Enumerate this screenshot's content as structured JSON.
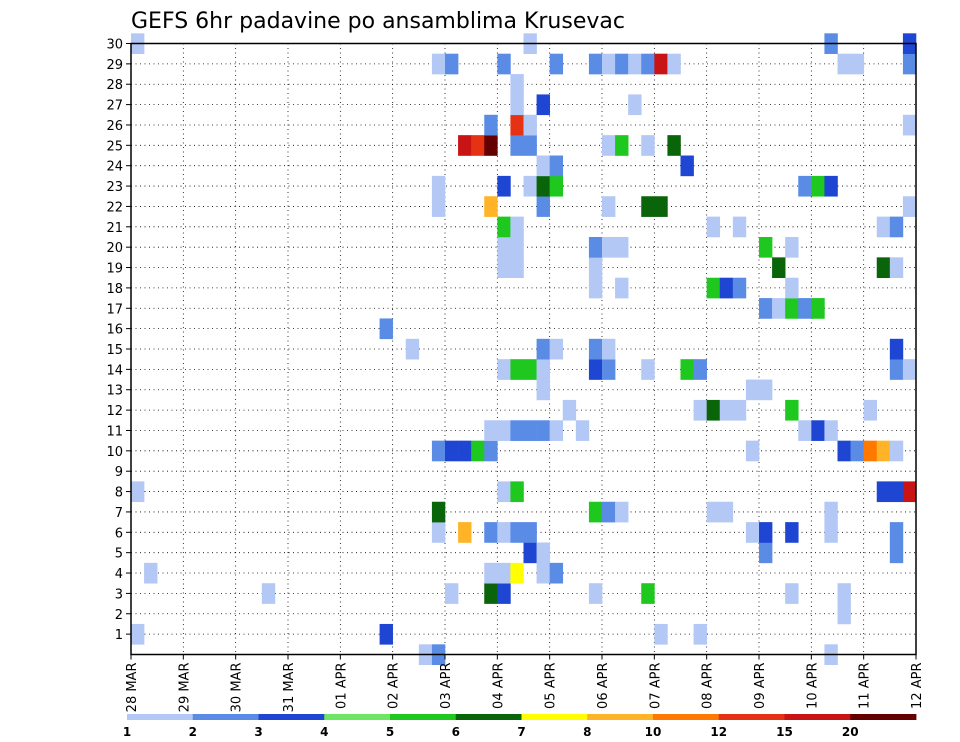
{
  "chart_data": {
    "type": "heatmap",
    "title": "GEFS 6hr padavine po ansamblima Krusevac",
    "xlabel": "",
    "ylabel": "",
    "x_tick_labels": [
      "28 MAR",
      "29 MAR",
      "30 MAR",
      "31 MAR",
      "01 APR",
      "02 APR",
      "03 APR",
      "04 APR",
      "05 APR",
      "06 APR",
      "07 APR",
      "08 APR",
      "09 APR",
      "10 APR",
      "11 APR",
      "12 APR"
    ],
    "x_steps_per_day": 4,
    "x_range_steps": [
      0,
      60
    ],
    "y_range": [
      0,
      30
    ],
    "y_ticks": [
      1,
      2,
      3,
      4,
      5,
      6,
      7,
      8,
      9,
      10,
      11,
      12,
      13,
      14,
      15,
      16,
      17,
      18,
      19,
      20,
      21,
      22,
      23,
      24,
      25,
      26,
      27,
      28,
      29,
      30
    ],
    "grid": "dotted",
    "colorbar": {
      "placement": "bottom",
      "levels": [
        "1",
        "2",
        "3",
        "4",
        "5",
        "6",
        "7",
        "8",
        "10",
        "12",
        "15",
        "20"
      ],
      "colors": [
        "#b4c8f5",
        "#5a8ce6",
        "#1e46d2",
        "#6ee664",
        "#1ec81e",
        "#0a640a",
        "#ffff00",
        "#ffb428",
        "#ff7800",
        "#e63214",
        "#c81414",
        "#640000"
      ]
    },
    "cells": [
      [
        0.5,
        1,
        1
      ],
      [
        0.5,
        8,
        1
      ],
      [
        0.5,
        30,
        1
      ],
      [
        1.5,
        4,
        1
      ],
      [
        10.5,
        3,
        1
      ],
      [
        19.5,
        1,
        3
      ],
      [
        19.5,
        16,
        2
      ],
      [
        21.5,
        15,
        1
      ],
      [
        22.5,
        0,
        1
      ],
      [
        23.5,
        0,
        2
      ],
      [
        23.5,
        6,
        1
      ],
      [
        23.5,
        7,
        6
      ],
      [
        23.5,
        10,
        2
      ],
      [
        23.5,
        22,
        1
      ],
      [
        23.5,
        23,
        1
      ],
      [
        23.5,
        29,
        1
      ],
      [
        24.5,
        3,
        1
      ],
      [
        24.5,
        10,
        3
      ],
      [
        24.5,
        29,
        2
      ],
      [
        25.5,
        6,
        8
      ],
      [
        25.5,
        10,
        3
      ],
      [
        25.5,
        25,
        15
      ],
      [
        26.5,
        10,
        5
      ],
      [
        26.5,
        25,
        12
      ],
      [
        27.5,
        3,
        6
      ],
      [
        27.5,
        6,
        2
      ],
      [
        27.5,
        10,
        2
      ],
      [
        27.5,
        4,
        1
      ],
      [
        27.5,
        11,
        1
      ],
      [
        27.5,
        22,
        8
      ],
      [
        27.5,
        25,
        20
      ],
      [
        27.5,
        26,
        2
      ],
      [
        28.5,
        3,
        3
      ],
      [
        28.5,
        4,
        1
      ],
      [
        28.5,
        6,
        1
      ],
      [
        28.5,
        8,
        1
      ],
      [
        28.5,
        11,
        1
      ],
      [
        28.5,
        14,
        1
      ],
      [
        28.5,
        19,
        1
      ],
      [
        28.5,
        20,
        1
      ],
      [
        28.5,
        21,
        5
      ],
      [
        28.5,
        23,
        3
      ],
      [
        28.5,
        29,
        2
      ],
      [
        29.5,
        4,
        7
      ],
      [
        29.5,
        6,
        2
      ],
      [
        29.5,
        8,
        5
      ],
      [
        29.5,
        11,
        2
      ],
      [
        29.5,
        14,
        5
      ],
      [
        29.5,
        19,
        1
      ],
      [
        29.5,
        20,
        1
      ],
      [
        29.5,
        21,
        1
      ],
      [
        29.5,
        25,
        2
      ],
      [
        29.5,
        26,
        12
      ],
      [
        29.5,
        27,
        1
      ],
      [
        29.5,
        28,
        1
      ],
      [
        30.5,
        5,
        3
      ],
      [
        30.5,
        6,
        2
      ],
      [
        30.5,
        11,
        2
      ],
      [
        30.5,
        14,
        5
      ],
      [
        30.5,
        23,
        1
      ],
      [
        30.5,
        25,
        2
      ],
      [
        30.5,
        26,
        1
      ],
      [
        30.5,
        30,
        1
      ],
      [
        31.5,
        4,
        1
      ],
      [
        31.5,
        5,
        1
      ],
      [
        31.5,
        11,
        2
      ],
      [
        31.5,
        13,
        1
      ],
      [
        31.5,
        14,
        1
      ],
      [
        31.5,
        15,
        2
      ],
      [
        31.5,
        22,
        2
      ],
      [
        31.5,
        23,
        6
      ],
      [
        31.5,
        24,
        1
      ],
      [
        31.5,
        27,
        3
      ],
      [
        32.5,
        4,
        2
      ],
      [
        32.5,
        11,
        1
      ],
      [
        32.5,
        15,
        1
      ],
      [
        32.5,
        23,
        5
      ],
      [
        32.5,
        24,
        2
      ],
      [
        32.5,
        29,
        2
      ],
      [
        33.5,
        12,
        1
      ],
      [
        34.5,
        11,
        1
      ],
      [
        35.5,
        3,
        1
      ],
      [
        35.5,
        7,
        5
      ],
      [
        35.5,
        14,
        3
      ],
      [
        35.5,
        15,
        2
      ],
      [
        35.5,
        18,
        1
      ],
      [
        35.5,
        19,
        1
      ],
      [
        35.5,
        20,
        2
      ],
      [
        35.5,
        29,
        2
      ],
      [
        36.5,
        7,
        2
      ],
      [
        36.5,
        14,
        2
      ],
      [
        36.5,
        15,
        1
      ],
      [
        36.5,
        20,
        1
      ],
      [
        36.5,
        22,
        1
      ],
      [
        36.5,
        25,
        1
      ],
      [
        36.5,
        29,
        1
      ],
      [
        37.5,
        7,
        1
      ],
      [
        37.5,
        18,
        1
      ],
      [
        37.5,
        20,
        1
      ],
      [
        37.5,
        25,
        5
      ],
      [
        37.5,
        29,
        2
      ],
      [
        38.5,
        27,
        1
      ],
      [
        38.5,
        29,
        1
      ],
      [
        39.5,
        3,
        5
      ],
      [
        39.5,
        14,
        1
      ],
      [
        39.5,
        22,
        6
      ],
      [
        39.5,
        25,
        1
      ],
      [
        39.5,
        29,
        2
      ],
      [
        40.5,
        1,
        1
      ],
      [
        40.5,
        22,
        6
      ],
      [
        40.5,
        29,
        15
      ],
      [
        41.5,
        25,
        6
      ],
      [
        41.5,
        29,
        1
      ],
      [
        42.5,
        14,
        5
      ],
      [
        42.5,
        24,
        3
      ],
      [
        43.5,
        1,
        1
      ],
      [
        43.5,
        12,
        1
      ],
      [
        43.5,
        14,
        2
      ],
      [
        44.5,
        7,
        1
      ],
      [
        44.5,
        12,
        6
      ],
      [
        44.5,
        18,
        5
      ],
      [
        44.5,
        21,
        1
      ],
      [
        45.5,
        7,
        1
      ],
      [
        45.5,
        12,
        1
      ],
      [
        45.5,
        18,
        3
      ],
      [
        46.5,
        12,
        1
      ],
      [
        46.5,
        18,
        2
      ],
      [
        46.5,
        21,
        1
      ],
      [
        47.5,
        6,
        1
      ],
      [
        47.5,
        10,
        1
      ],
      [
        47.5,
        13,
        1
      ],
      [
        48.5,
        5,
        2
      ],
      [
        48.5,
        6,
        3
      ],
      [
        48.5,
        13,
        1
      ],
      [
        48.5,
        17,
        2
      ],
      [
        48.5,
        20,
        5
      ],
      [
        49.5,
        17,
        1
      ],
      [
        49.5,
        19,
        6
      ],
      [
        50.5,
        3,
        1
      ],
      [
        50.5,
        6,
        3
      ],
      [
        50.5,
        12,
        5
      ],
      [
        50.5,
        17,
        5
      ],
      [
        50.5,
        18,
        1
      ],
      [
        50.5,
        20,
        1
      ],
      [
        51.5,
        11,
        1
      ],
      [
        51.5,
        17,
        2
      ],
      [
        51.5,
        23,
        2
      ],
      [
        52.5,
        11,
        3
      ],
      [
        52.5,
        17,
        5
      ],
      [
        52.5,
        23,
        5
      ],
      [
        53.5,
        0,
        1
      ],
      [
        53.5,
        6,
        1
      ],
      [
        53.5,
        7,
        1
      ],
      [
        53.5,
        11,
        1
      ],
      [
        53.5,
        23,
        3
      ],
      [
        53.5,
        30,
        2
      ],
      [
        54.5,
        2,
        1
      ],
      [
        54.5,
        3,
        1
      ],
      [
        54.5,
        10,
        3
      ],
      [
        54.5,
        29,
        1
      ],
      [
        55.5,
        10,
        2
      ],
      [
        55.5,
        29,
        1
      ],
      [
        56.5,
        10,
        10
      ],
      [
        56.5,
        12,
        1
      ],
      [
        57.5,
        8,
        3
      ],
      [
        57.5,
        10,
        8
      ],
      [
        57.5,
        19,
        6
      ],
      [
        57.5,
        21,
        1
      ],
      [
        58.5,
        5,
        2
      ],
      [
        58.5,
        6,
        2
      ],
      [
        58.5,
        8,
        3
      ],
      [
        58.5,
        10,
        1
      ],
      [
        58.5,
        14,
        2
      ],
      [
        58.5,
        15,
        3
      ],
      [
        58.5,
        19,
        1
      ],
      [
        58.5,
        21,
        2
      ],
      [
        59.5,
        8,
        15
      ],
      [
        59.5,
        14,
        1
      ],
      [
        59.5,
        22,
        1
      ],
      [
        59.5,
        26,
        1
      ],
      [
        59.5,
        29,
        2
      ],
      [
        59.5,
        30,
        3
      ]
    ]
  }
}
